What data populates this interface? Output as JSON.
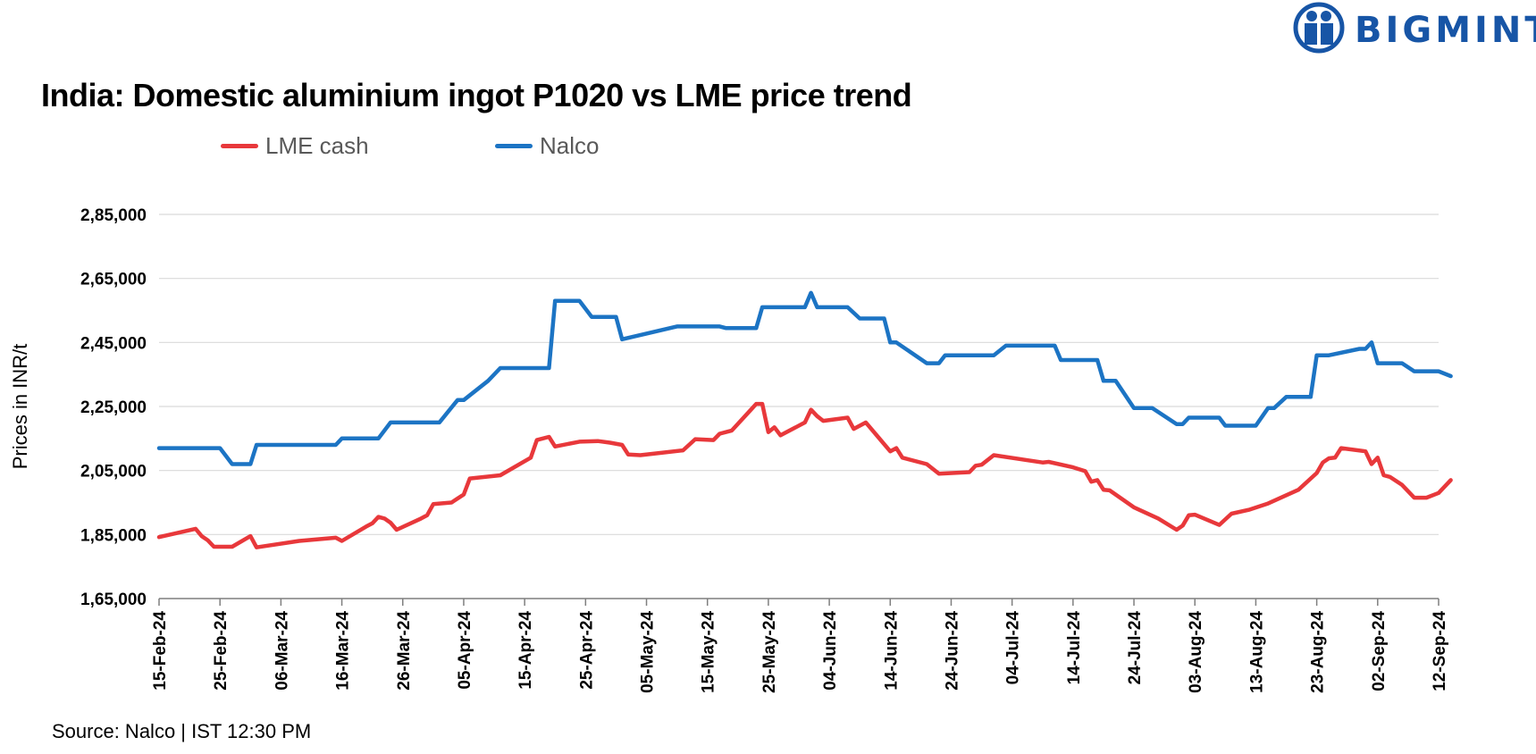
{
  "brand": {
    "name": "BIGMINT",
    "color": "#1755a6"
  },
  "chart_data": {
    "type": "line",
    "title": "India: Domestic aluminium ingot P1020 vs LME price trend",
    "ylabel": "Prices in INR/t",
    "xlabel": "",
    "ylim": [
      165000,
      285000
    ],
    "yticks": [
      165000,
      185000,
      205000,
      225000,
      245000,
      265000,
      285000
    ],
    "ytick_labels": [
      "1,65,000",
      "1,85,000",
      "2,05,000",
      "2,25,000",
      "2,45,000",
      "2,65,000",
      "2,85,000"
    ],
    "xlim": [
      "2024-02-15",
      "2024-09-12"
    ],
    "xticks": [
      "2024-02-15",
      "2024-02-25",
      "2024-03-06",
      "2024-03-16",
      "2024-03-26",
      "2024-04-05",
      "2024-04-15",
      "2024-04-25",
      "2024-05-05",
      "2024-05-15",
      "2024-05-25",
      "2024-06-04",
      "2024-06-14",
      "2024-06-24",
      "2024-07-04",
      "2024-07-14",
      "2024-07-24",
      "2024-08-03",
      "2024-08-13",
      "2024-08-23",
      "2024-09-02",
      "2024-09-12"
    ],
    "xtick_labels": [
      "15-Feb-24",
      "25-Feb-24",
      "06-Mar-24",
      "16-Mar-24",
      "26-Mar-24",
      "05-Apr-24",
      "15-Apr-24",
      "25-Apr-24",
      "05-May-24",
      "15-May-24",
      "25-May-24",
      "04-Jun-24",
      "14-Jun-24",
      "24-Jun-24",
      "04-Jul-24",
      "14-Jul-24",
      "24-Jul-24",
      "03-Aug-24",
      "13-Aug-24",
      "23-Aug-24",
      "02-Sep-24",
      "12-Sep-24"
    ],
    "grid": true,
    "legend_position": "top",
    "series": [
      {
        "name": "LME cash",
        "color": "#e8383b",
        "points": [
          [
            "2024-02-15",
            184200
          ],
          [
            "2024-02-21",
            186800
          ],
          [
            "2024-02-22",
            184500
          ],
          [
            "2024-02-23",
            183200
          ],
          [
            "2024-02-24",
            181200
          ],
          [
            "2024-02-27",
            181200
          ],
          [
            "2024-03-01",
            184500
          ],
          [
            "2024-03-02",
            181000
          ],
          [
            "2024-03-09",
            183000
          ],
          [
            "2024-03-15",
            184000
          ],
          [
            "2024-03-16",
            183000
          ],
          [
            "2024-03-20",
            187500
          ],
          [
            "2024-03-21",
            188500
          ],
          [
            "2024-03-22",
            190500
          ],
          [
            "2024-03-23",
            190000
          ],
          [
            "2024-03-24",
            188700
          ],
          [
            "2024-03-25",
            186500
          ],
          [
            "2024-03-29",
            190000
          ],
          [
            "2024-03-30",
            191000
          ],
          [
            "2024-03-31",
            194500
          ],
          [
            "2024-04-03",
            195000
          ],
          [
            "2024-04-05",
            197500
          ],
          [
            "2024-04-06",
            202500
          ],
          [
            "2024-04-11",
            203500
          ],
          [
            "2024-04-16",
            209000
          ],
          [
            "2024-04-17",
            214500
          ],
          [
            "2024-04-19",
            215500
          ],
          [
            "2024-04-20",
            212500
          ],
          [
            "2024-04-24",
            214000
          ],
          [
            "2024-04-27",
            214200
          ],
          [
            "2024-04-29",
            213700
          ],
          [
            "2024-05-01",
            213000
          ],
          [
            "2024-05-02",
            210000
          ],
          [
            "2024-05-04",
            209800
          ],
          [
            "2024-05-11",
            211300
          ],
          [
            "2024-05-13",
            214800
          ],
          [
            "2024-05-16",
            214500
          ],
          [
            "2024-05-17",
            216500
          ],
          [
            "2024-05-19",
            217500
          ],
          [
            "2024-05-22",
            223700
          ],
          [
            "2024-05-23",
            225800
          ],
          [
            "2024-05-24",
            225800
          ],
          [
            "2024-05-25",
            217000
          ],
          [
            "2024-05-26",
            218500
          ],
          [
            "2024-05-27",
            216000
          ],
          [
            "2024-05-31",
            220000
          ],
          [
            "2024-06-01",
            224000
          ],
          [
            "2024-06-02",
            222000
          ],
          [
            "2024-06-03",
            220500
          ],
          [
            "2024-06-07",
            221500
          ],
          [
            "2024-06-08",
            218000
          ],
          [
            "2024-06-10",
            220000
          ],
          [
            "2024-06-12",
            215500
          ],
          [
            "2024-06-14",
            211000
          ],
          [
            "2024-06-15",
            212000
          ],
          [
            "2024-06-16",
            209000
          ],
          [
            "2024-06-20",
            207000
          ],
          [
            "2024-06-22",
            204000
          ],
          [
            "2024-06-27",
            204500
          ],
          [
            "2024-06-28",
            206500
          ],
          [
            "2024-06-29",
            206800
          ],
          [
            "2024-07-01",
            209800
          ],
          [
            "2024-07-09",
            207500
          ],
          [
            "2024-07-10",
            207700
          ],
          [
            "2024-07-14",
            206000
          ],
          [
            "2024-07-16",
            204800
          ],
          [
            "2024-07-17",
            201500
          ],
          [
            "2024-07-18",
            202000
          ],
          [
            "2024-07-19",
            199000
          ],
          [
            "2024-07-20",
            198800
          ],
          [
            "2024-07-24",
            193500
          ],
          [
            "2024-07-28",
            190000
          ],
          [
            "2024-07-31",
            186500
          ],
          [
            "2024-08-01",
            187800
          ],
          [
            "2024-08-02",
            191000
          ],
          [
            "2024-08-03",
            191200
          ],
          [
            "2024-08-07",
            188000
          ],
          [
            "2024-08-09",
            191500
          ],
          [
            "2024-08-12",
            192800
          ],
          [
            "2024-08-15",
            194700
          ],
          [
            "2024-08-20",
            199000
          ],
          [
            "2024-08-23",
            204200
          ],
          [
            "2024-08-24",
            207500
          ],
          [
            "2024-08-25",
            208800
          ],
          [
            "2024-08-26",
            209000
          ],
          [
            "2024-08-27",
            212000
          ],
          [
            "2024-08-31",
            211000
          ],
          [
            "2024-09-01",
            207000
          ],
          [
            "2024-09-02",
            209000
          ],
          [
            "2024-09-03",
            203500
          ],
          [
            "2024-09-04",
            203000
          ],
          [
            "2024-09-06",
            200500
          ],
          [
            "2024-09-08",
            196500
          ],
          [
            "2024-09-10",
            196500
          ],
          [
            "2024-09-12",
            198000
          ],
          [
            "2024-09-14",
            202000
          ]
        ]
      },
      {
        "name": "Nalco",
        "color": "#1c74c4",
        "points": [
          [
            "2024-02-15",
            212000
          ],
          [
            "2024-02-25",
            212000
          ],
          [
            "2024-02-27",
            207000
          ],
          [
            "2024-03-01",
            207000
          ],
          [
            "2024-03-02",
            213000
          ],
          [
            "2024-03-15",
            213000
          ],
          [
            "2024-03-16",
            215000
          ],
          [
            "2024-03-22",
            215000
          ],
          [
            "2024-03-24",
            220000
          ],
          [
            "2024-04-01",
            220000
          ],
          [
            "2024-04-04",
            227000
          ],
          [
            "2024-04-05",
            227000
          ],
          [
            "2024-04-09",
            233000
          ],
          [
            "2024-04-11",
            237000
          ],
          [
            "2024-04-19",
            237000
          ],
          [
            "2024-04-20",
            258000
          ],
          [
            "2024-04-24",
            258000
          ],
          [
            "2024-04-26",
            253000
          ],
          [
            "2024-04-30",
            253000
          ],
          [
            "2024-05-01",
            246000
          ],
          [
            "2024-05-10",
            250000
          ],
          [
            "2024-05-17",
            250000
          ],
          [
            "2024-05-18",
            249500
          ],
          [
            "2024-05-23",
            249500
          ],
          [
            "2024-05-24",
            256000
          ],
          [
            "2024-05-31",
            256000
          ],
          [
            "2024-06-01",
            260500
          ],
          [
            "2024-06-02",
            256000
          ],
          [
            "2024-06-07",
            256000
          ],
          [
            "2024-06-09",
            252500
          ],
          [
            "2024-06-13",
            252500
          ],
          [
            "2024-06-14",
            245000
          ],
          [
            "2024-06-15",
            245000
          ],
          [
            "2024-06-20",
            238500
          ],
          [
            "2024-06-22",
            238500
          ],
          [
            "2024-06-23",
            241000
          ],
          [
            "2024-07-01",
            241000
          ],
          [
            "2024-07-03",
            244000
          ],
          [
            "2024-07-11",
            244000
          ],
          [
            "2024-07-12",
            239500
          ],
          [
            "2024-07-18",
            239500
          ],
          [
            "2024-07-19",
            233000
          ],
          [
            "2024-07-21",
            233000
          ],
          [
            "2024-07-24",
            224500
          ],
          [
            "2024-07-27",
            224500
          ],
          [
            "2024-07-31",
            219500
          ],
          [
            "2024-08-01",
            219500
          ],
          [
            "2024-08-02",
            221500
          ],
          [
            "2024-08-07",
            221500
          ],
          [
            "2024-08-08",
            219000
          ],
          [
            "2024-08-13",
            219000
          ],
          [
            "2024-08-15",
            224500
          ],
          [
            "2024-08-16",
            224500
          ],
          [
            "2024-08-18",
            228000
          ],
          [
            "2024-08-22",
            228000
          ],
          [
            "2024-08-23",
            241000
          ],
          [
            "2024-08-25",
            241000
          ],
          [
            "2024-08-30",
            243000
          ],
          [
            "2024-08-31",
            243000
          ],
          [
            "2024-09-01",
            245000
          ],
          [
            "2024-09-02",
            238500
          ],
          [
            "2024-09-06",
            238500
          ],
          [
            "2024-09-08",
            236000
          ],
          [
            "2024-09-12",
            236000
          ],
          [
            "2024-09-14",
            234500
          ]
        ]
      }
    ]
  },
  "source": "Source: Nalco | IST 12:30 PM"
}
